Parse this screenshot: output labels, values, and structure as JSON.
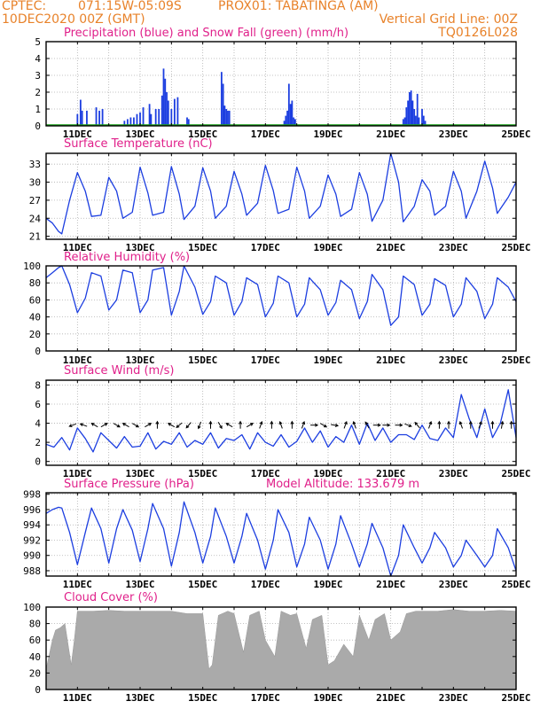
{
  "header": {
    "line1_left": "CPTEC:",
    "coords": "071:15W-05:09S",
    "station": "PROX01: TABATINGA (AM)",
    "init_time": "10DEC2020 00Z (GMT)",
    "grid_note": "Vertical Grid Line: 00Z",
    "code": "TQ0126L028"
  },
  "colors": {
    "header": "#e8822a",
    "panel_title": "#e0208a",
    "line": "#1c3ee0",
    "precip_bar": "#1c3ee0",
    "snow": "#18a018",
    "cloud_fill": "#aaaaaa",
    "arrow": "#000000"
  },
  "x_axis": {
    "start_day": 10,
    "end_day": 25,
    "tick_labels": [
      "11DEC",
      "13DEC",
      "15DEC",
      "17DEC",
      "19DEC",
      "21DEC",
      "23DEC",
      "25DEC"
    ]
  },
  "chart_data": [
    {
      "type": "bar",
      "title": "Precipitation (blue) and Snow Fall (green) (mm/h)",
      "ylim": [
        0,
        5
      ],
      "yticks": [
        0,
        1,
        2,
        3,
        4,
        5
      ],
      "x": [
        11.0,
        11.1,
        11.15,
        11.3,
        11.6,
        11.7,
        11.8,
        12.5,
        12.6,
        12.7,
        12.8,
        12.9,
        13.0,
        13.1,
        13.3,
        13.35,
        13.5,
        13.6,
        13.7,
        13.75,
        13.8,
        13.85,
        13.9,
        14.0,
        14.1,
        14.2,
        14.5,
        14.55,
        15.6,
        15.65,
        15.7,
        15.75,
        15.8,
        15.85,
        17.6,
        17.65,
        17.7,
        17.75,
        17.8,
        17.85,
        17.9,
        17.95,
        21.4,
        21.45,
        21.5,
        21.55,
        21.6,
        21.65,
        21.7,
        21.75,
        21.8,
        21.85,
        21.9,
        22.0,
        22.05,
        22.1
      ],
      "values": [
        0.7,
        1.55,
        0.9,
        0.9,
        1.1,
        0.9,
        1.0,
        0.3,
        0.4,
        0.5,
        0.5,
        0.7,
        0.8,
        1.1,
        1.3,
        0.7,
        1.0,
        1.0,
        1.8,
        3.4,
        2.8,
        2.0,
        1.5,
        1.0,
        1.6,
        1.7,
        0.5,
        0.4,
        3.2,
        2.5,
        1.2,
        1.0,
        0.9,
        0.9,
        0.3,
        0.6,
        0.9,
        2.5,
        1.3,
        1.5,
        0.5,
        0.4,
        0.4,
        0.5,
        1.1,
        1.5,
        2.0,
        2.1,
        1.5,
        1.0,
        0.6,
        1.9,
        0.5,
        1.0,
        0.6,
        0.3
      ]
    },
    {
      "type": "line",
      "title": "Surface Temperature (nC)",
      "ylim": [
        20.5,
        34.8
      ],
      "yticks": [
        21,
        24,
        27,
        30,
        33
      ],
      "x": [
        10.0,
        10.2,
        10.4,
        10.5,
        10.75,
        11.0,
        11.25,
        11.45,
        11.75,
        12.0,
        12.25,
        12.45,
        12.75,
        13.0,
        13.25,
        13.4,
        13.75,
        14.0,
        14.25,
        14.4,
        14.75,
        15.0,
        15.25,
        15.4,
        15.75,
        16.0,
        16.25,
        16.4,
        16.75,
        17.0,
        17.25,
        17.4,
        17.75,
        18.0,
        18.25,
        18.4,
        18.75,
        19.0,
        19.25,
        19.4,
        19.75,
        20.0,
        20.25,
        20.4,
        20.75,
        21.0,
        21.25,
        21.4,
        21.75,
        22.0,
        22.25,
        22.4,
        22.75,
        23.0,
        23.25,
        23.4,
        23.75,
        24.0,
        24.25,
        24.4,
        24.75,
        25.0
      ],
      "series": [
        {
          "values": [
            24.0,
            23.2,
            21.8,
            21.4,
            27.0,
            31.6,
            28.5,
            24.3,
            24.5,
            30.8,
            28.5,
            24.0,
            25.0,
            32.5,
            28.2,
            24.5,
            25.0,
            32.6,
            28.0,
            23.8,
            26.0,
            32.4,
            28.5,
            24.0,
            26.0,
            31.8,
            28.0,
            24.5,
            26.5,
            32.8,
            28.6,
            24.8,
            25.5,
            32.5,
            28.5,
            24.0,
            26.0,
            31.2,
            28.0,
            24.3,
            25.5,
            31.6,
            28.0,
            23.5,
            27.0,
            34.8,
            30.0,
            23.4,
            26.0,
            30.4,
            28.5,
            24.5,
            26.0,
            31.8,
            28.5,
            24.0,
            28.5,
            33.5,
            29.0,
            24.8,
            27.5,
            30.0
          ]
        }
      ]
    },
    {
      "type": "line",
      "title": "Relative Humidity (%)",
      "ylim": [
        0,
        100
      ],
      "yticks": [
        0,
        20,
        40,
        60,
        80,
        100
      ],
      "x": [
        10.0,
        10.2,
        10.4,
        10.5,
        10.75,
        11.0,
        11.25,
        11.45,
        11.75,
        12.0,
        12.25,
        12.45,
        12.75,
        13.0,
        13.25,
        13.4,
        13.75,
        14.0,
        14.25,
        14.4,
        14.75,
        15.0,
        15.25,
        15.4,
        15.75,
        16.0,
        16.25,
        16.4,
        16.75,
        17.0,
        17.25,
        17.4,
        17.75,
        18.0,
        18.25,
        18.4,
        18.75,
        19.0,
        19.25,
        19.4,
        19.75,
        20.0,
        20.25,
        20.4,
        20.75,
        21.0,
        21.25,
        21.4,
        21.75,
        22.0,
        22.25,
        22.4,
        22.75,
        23.0,
        23.25,
        23.4,
        23.75,
        24.0,
        24.25,
        24.4,
        24.75,
        25.0
      ],
      "series": [
        {
          "values": [
            86,
            92,
            98,
            100,
            78,
            45,
            62,
            92,
            88,
            48,
            60,
            95,
            92,
            45,
            60,
            95,
            98,
            42,
            70,
            100,
            75,
            43,
            58,
            88,
            80,
            42,
            58,
            86,
            78,
            40,
            56,
            88,
            80,
            40,
            55,
            86,
            72,
            42,
            57,
            83,
            72,
            38,
            58,
            90,
            72,
            30,
            40,
            88,
            78,
            42,
            55,
            85,
            77,
            40,
            55,
            86,
            70,
            38,
            55,
            86,
            75,
            58
          ]
        }
      ]
    },
    {
      "type": "line",
      "title": "Surface Wind (m/s)",
      "ylim": [
        -0.4,
        8.5
      ],
      "yticks": [
        0,
        2,
        4,
        6,
        8
      ],
      "x": [
        10.0,
        10.25,
        10.5,
        10.75,
        11.0,
        11.25,
        11.5,
        11.75,
        12.0,
        12.25,
        12.5,
        12.75,
        13.0,
        13.25,
        13.5,
        13.75,
        14.0,
        14.25,
        14.5,
        14.75,
        15.0,
        15.25,
        15.5,
        15.75,
        16.0,
        16.25,
        16.5,
        16.75,
        17.0,
        17.25,
        17.5,
        17.75,
        18.0,
        18.25,
        18.5,
        18.75,
        19.0,
        19.25,
        19.5,
        19.75,
        20.0,
        20.25,
        20.5,
        20.75,
        21.0,
        21.25,
        21.5,
        21.75,
        22.0,
        22.25,
        22.5,
        22.75,
        23.0,
        23.25,
        23.5,
        23.75,
        24.0,
        24.25,
        24.5,
        24.75,
        25.0
      ],
      "series": [
        {
          "values": [
            1.8,
            1.5,
            2.5,
            1.2,
            3.5,
            2.4,
            1.0,
            3.0,
            2.2,
            1.4,
            2.6,
            1.5,
            1.6,
            3.0,
            1.3,
            2.1,
            1.8,
            3.0,
            1.5,
            2.2,
            1.8,
            3.0,
            1.4,
            2.4,
            2.2,
            2.8,
            1.3,
            3.0,
            2.0,
            1.6,
            2.8,
            1.5,
            2.1,
            3.5,
            2.0,
            3.2,
            1.5,
            2.6,
            2.0,
            3.8,
            1.8,
            4.0,
            2.2,
            3.5,
            2.0,
            2.8,
            2.8,
            2.3,
            3.8,
            2.4,
            2.2,
            3.5,
            2.5,
            7.0,
            4.5,
            2.5,
            5.5,
            2.5,
            4.0,
            7.5,
            2.5
          ]
        }
      ],
      "arrows": {
        "x": [
          10.85,
          11.2,
          11.55,
          11.85,
          12.25,
          12.55,
          12.85,
          13.25,
          13.55,
          14.0,
          14.25,
          14.55,
          14.9,
          15.25,
          15.55,
          15.85,
          16.2,
          16.5,
          16.85,
          17.2,
          17.5,
          17.85,
          18.2,
          18.55,
          18.85,
          19.2,
          19.55,
          19.85,
          20.25,
          20.55,
          20.85,
          21.25,
          21.55,
          21.85,
          22.25,
          22.55,
          22.85,
          23.25,
          23.55,
          23.85,
          24.25,
          24.55,
          24.85
        ],
        "dir_deg": [
          250,
          290,
          300,
          60,
          120,
          300,
          120,
          60,
          0,
          300,
          230,
          220,
          200,
          0,
          150,
          300,
          0,
          60,
          20,
          0,
          340,
          0,
          20,
          90,
          120,
          100,
          20,
          340,
          330,
          90,
          90,
          90,
          110,
          320,
          20,
          0,
          0,
          340,
          0,
          20,
          0,
          10,
          0
        ]
      }
    },
    {
      "type": "line",
      "title": "Surface Pressure (hPa)",
      "annotation": "Model Altitude: 133.679 m",
      "ylim": [
        987.3,
        998.2
      ],
      "yticks": [
        988,
        990,
        992,
        994,
        996,
        998
      ],
      "x": [
        10.0,
        10.2,
        10.4,
        10.5,
        10.75,
        11.0,
        11.25,
        11.45,
        11.75,
        12.0,
        12.25,
        12.45,
        12.75,
        13.0,
        13.25,
        13.4,
        13.75,
        14.0,
        14.25,
        14.4,
        14.75,
        15.0,
        15.25,
        15.4,
        15.75,
        16.0,
        16.25,
        16.4,
        16.75,
        17.0,
        17.25,
        17.4,
        17.75,
        18.0,
        18.25,
        18.4,
        18.75,
        19.0,
        19.25,
        19.4,
        19.75,
        20.0,
        20.25,
        20.4,
        20.75,
        21.0,
        21.25,
        21.4,
        21.75,
        22.0,
        22.25,
        22.4,
        22.75,
        23.0,
        23.25,
        23.4,
        23.75,
        24.0,
        24.25,
        24.4,
        24.75,
        25.0
      ],
      "series": [
        {
          "values": [
            995.5,
            996.0,
            996.3,
            996.2,
            993.0,
            988.8,
            993.0,
            996.2,
            993.5,
            989.0,
            993.5,
            996.0,
            993.3,
            989.2,
            993.5,
            996.8,
            993.5,
            988.6,
            993.0,
            997.0,
            993.0,
            989.0,
            992.5,
            996.2,
            992.5,
            989.0,
            992.5,
            995.5,
            992.0,
            988.2,
            992.0,
            996.0,
            993.0,
            988.5,
            991.5,
            995.0,
            992.0,
            988.2,
            991.5,
            995.2,
            991.5,
            988.5,
            991.5,
            994.2,
            991.0,
            987.3,
            990.0,
            994.0,
            991.0,
            989.0,
            991.0,
            993.0,
            991.0,
            988.5,
            990.0,
            992.0,
            990.0,
            988.5,
            990.0,
            993.5,
            991.0,
            988.0
          ]
        }
      ]
    },
    {
      "type": "area",
      "title": "Cloud Cover (%)",
      "ylim": [
        0,
        100
      ],
      "yticks": [
        0,
        20,
        40,
        60,
        80,
        100
      ],
      "x": [
        10.0,
        10.2,
        10.3,
        10.45,
        10.6,
        10.8,
        10.9,
        11.0,
        11.5,
        12.0,
        12.5,
        13.0,
        13.5,
        14.0,
        14.5,
        15.0,
        15.2,
        15.3,
        15.5,
        15.8,
        16.0,
        16.3,
        16.5,
        16.8,
        17.0,
        17.3,
        17.5,
        17.8,
        18.0,
        18.3,
        18.5,
        18.8,
        19.0,
        19.2,
        19.5,
        19.8,
        20.0,
        20.3,
        20.5,
        20.8,
        21.0,
        21.3,
        21.5,
        21.8,
        22.0,
        22.5,
        23.0,
        23.5,
        24.0,
        24.5,
        25.0
      ],
      "values": [
        25,
        60,
        72,
        75,
        80,
        30,
        60,
        95,
        95,
        96,
        95,
        95,
        95,
        95,
        92,
        92,
        25,
        30,
        90,
        95,
        92,
        45,
        90,
        95,
        60,
        40,
        95,
        90,
        92,
        50,
        85,
        90,
        30,
        35,
        55,
        40,
        90,
        60,
        85,
        92,
        60,
        70,
        92,
        95,
        95,
        95,
        97,
        95,
        95,
        96,
        95
      ]
    }
  ]
}
